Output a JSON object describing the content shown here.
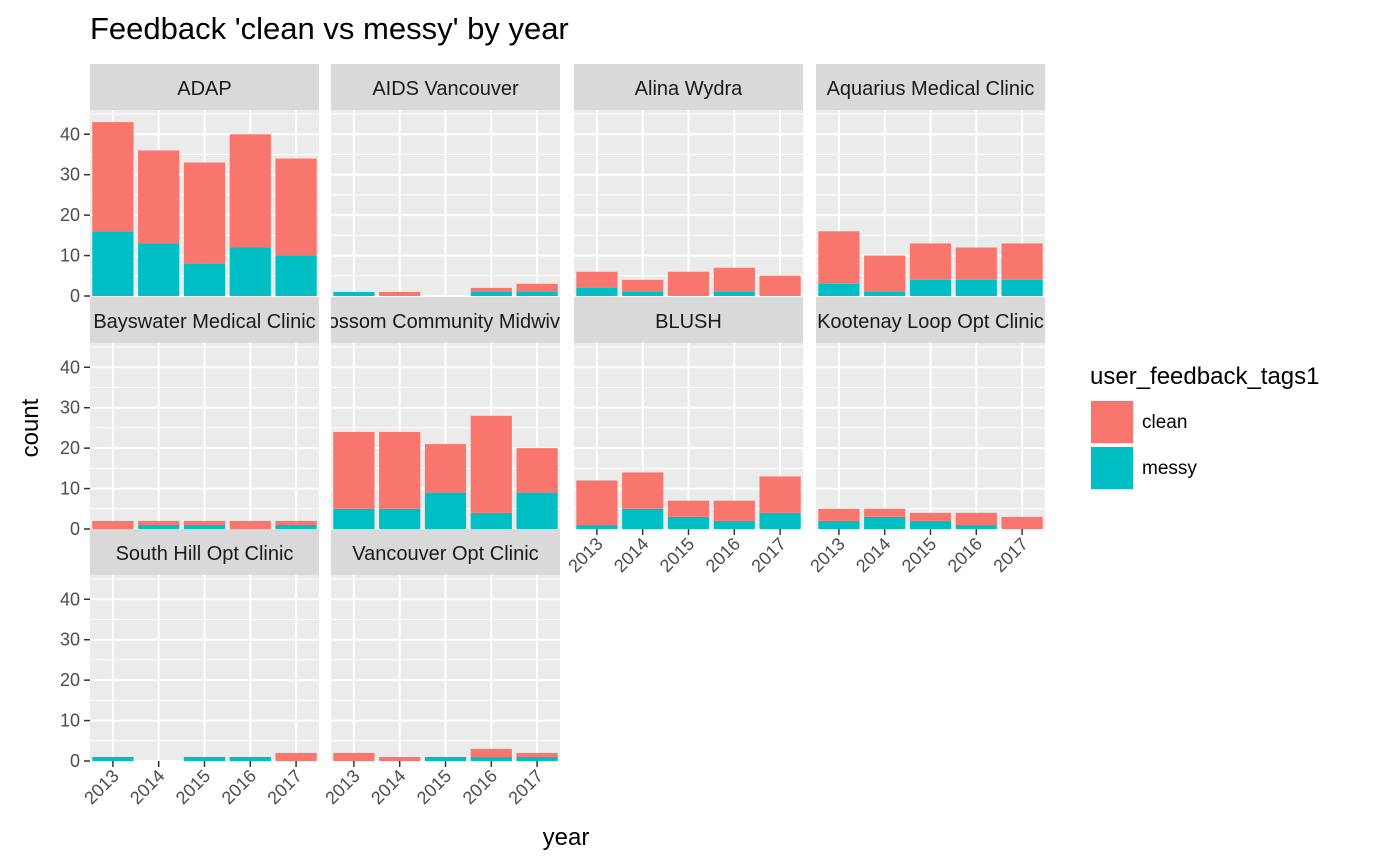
{
  "chart_data": {
    "type": "bar",
    "stacked": true,
    "title": "Feedback 'clean vs messy' by year",
    "xlabel": "year",
    "ylabel": "count",
    "ylim": [
      0,
      46
    ],
    "yticks": [
      0,
      10,
      20,
      30,
      40
    ],
    "categories": [
      "2013",
      "2014",
      "2015",
      "2016",
      "2017"
    ],
    "legend": {
      "title": "user_feedback_tags1",
      "placement": "right",
      "items": [
        {
          "label": "clean",
          "color": "#F8766D"
        },
        {
          "label": "messy",
          "color": "#00BFC4"
        }
      ]
    },
    "colors": {
      "clean": "#F8766D",
      "messy": "#00BFC4",
      "panel_bg": "#EBEBEB",
      "strip_bg": "#D9D9D9"
    },
    "panels": [
      {
        "label": "ADAP",
        "clean": [
          27,
          23,
          25,
          28,
          24
        ],
        "messy": [
          16,
          13,
          8,
          12,
          10
        ]
      },
      {
        "label": "AIDS Vancouver",
        "clean": [
          0,
          1,
          0,
          1,
          2
        ],
        "messy": [
          1,
          0,
          0,
          1,
          1
        ]
      },
      {
        "label": "Alina Wydra",
        "clean": [
          4,
          3,
          6,
          6,
          5
        ],
        "messy": [
          2,
          1,
          0,
          1,
          0
        ]
      },
      {
        "label": "Aquarius Medical Clinic",
        "clean": [
          13,
          9,
          9,
          8,
          9
        ],
        "messy": [
          3,
          1,
          4,
          4,
          4
        ]
      },
      {
        "label": "Bayswater Medical Clinic",
        "clean": [
          2,
          1,
          1,
          2,
          1
        ],
        "messy": [
          0,
          1,
          1,
          0,
          1
        ]
      },
      {
        "label": "Blossom Community Midwives",
        "clean": [
          19,
          19,
          12,
          24,
          11
        ],
        "messy": [
          5,
          5,
          9,
          4,
          9
        ]
      },
      {
        "label": "BLUSH",
        "clean": [
          11,
          9,
          4,
          5,
          9
        ],
        "messy": [
          1,
          5,
          3,
          2,
          4
        ]
      },
      {
        "label": "Kootenay Loop Opt Clinic",
        "clean": [
          3,
          2,
          2,
          3,
          3
        ],
        "messy": [
          2,
          3,
          2,
          1,
          0
        ]
      },
      {
        "label": "South Hill Opt Clinic",
        "clean": [
          0,
          0,
          0,
          0,
          2
        ],
        "messy": [
          1,
          0,
          1,
          1,
          0
        ]
      },
      {
        "label": "Vancouver Opt Clinic",
        "clean": [
          2,
          1,
          0,
          2,
          1
        ],
        "messy": [
          0,
          0,
          1,
          1,
          1
        ]
      }
    ]
  }
}
